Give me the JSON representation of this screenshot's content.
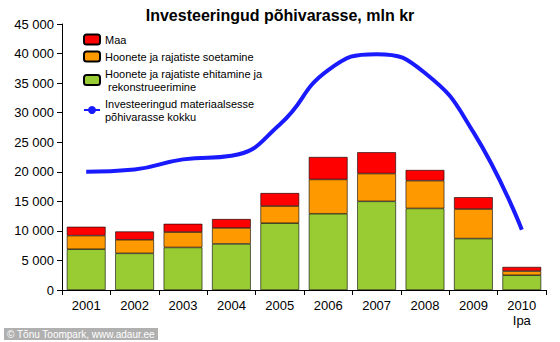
{
  "chart_data": {
    "type": "bar",
    "title": "Investeeringud põhivarasse, mln kr",
    "categories": [
      "2001",
      "2002",
      "2003",
      "2004",
      "2005",
      "2006",
      "2007",
      "2008",
      "2009",
      "2010\nIpa"
    ],
    "stacked": true,
    "grid": false,
    "legend": "upper left",
    "series": [
      {
        "name": "Hoonete ja rajatiste ehitamine ja rekonstrueerimine",
        "type": "bar",
        "color": "#99cc33",
        "values": [
          6900,
          6200,
          7200,
          7800,
          11300,
          12900,
          15000,
          13800,
          8700,
          2500
        ]
      },
      {
        "name": "Hoonete ja rajatiste soetamine",
        "type": "bar",
        "color": "#ff9900",
        "values": [
          2300,
          2300,
          2600,
          2700,
          2900,
          5800,
          4700,
          4700,
          5000,
          700
        ]
      },
      {
        "name": "Maa",
        "type": "bar",
        "color": "#ff0000",
        "values": [
          1500,
          1400,
          1400,
          1500,
          2200,
          3800,
          3600,
          1800,
          2000,
          700
        ]
      },
      {
        "name": "Investeeringud materiaalsesse põhivarasse kokku",
        "type": "line",
        "color": "#1a1aff",
        "line_style": "solid",
        "values": [
          20000,
          20400,
          22100,
          22700,
          28000,
          37200,
          39900,
          36700,
          26700,
          10200
        ]
      }
    ],
    "ylim": [
      0,
      45000
    ],
    "yticks": [
      0,
      {
        "value": 5000,
        "label": "5 000"
      },
      {
        "value": 10000,
        "label": "10 000"
      },
      {
        "value": 15000,
        "label": "15 000"
      },
      {
        "value": 20000,
        "label": "20 000"
      },
      {
        "value": 25000,
        "label": "25 000"
      },
      {
        "value": 30000,
        "label": "30 000"
      },
      {
        "value": 35000,
        "label": "35 000"
      },
      {
        "value": 40000,
        "label": "40 000"
      },
      {
        "value": 45000,
        "label": "45 000"
      }
    ],
    "annotations": [
      "© Tõnu Toompark, www.adaur.ee"
    ]
  }
}
